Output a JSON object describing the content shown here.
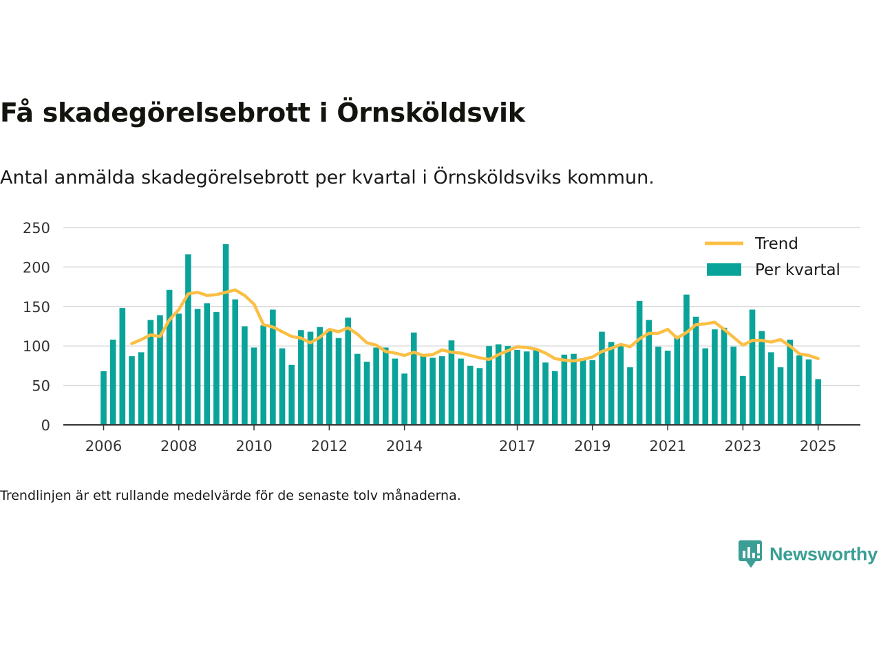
{
  "title": "Få skadegörelsebrott i Örnsköldsvik",
  "subtitle": "Antal anmälda skadegörelsebrott per kvartal i Örnsköldsviks kommun.",
  "footnote": "Trendlinjen är ett rullande medelvärde för de senaste tolv månaderna.",
  "brand": {
    "name": "Newsworthy",
    "color": "#3a9e94",
    "icon": "newsworthy-logo-icon"
  },
  "colors": {
    "bar": "#0aa39a",
    "trend": "#fbbf45",
    "grid": "#d9d9d9",
    "axis": "#333333"
  },
  "chart_data": {
    "type": "bar",
    "title": "",
    "xlabel": "",
    "ylabel": "",
    "ylim": [
      0,
      250
    ],
    "yticks": [
      0,
      50,
      100,
      150,
      200,
      250
    ],
    "xticks": [
      "2006",
      "2008",
      "2010",
      "2012",
      "2014",
      "2017",
      "2019",
      "2021",
      "2023",
      "2025"
    ],
    "grid": true,
    "legend_position": "top-right",
    "series": [
      {
        "name": "Per kvartal",
        "type": "bar",
        "values": [
          68,
          108,
          148,
          87,
          92,
          133,
          139,
          171,
          141,
          216,
          147,
          154,
          143,
          229,
          159,
          125,
          98,
          126,
          146,
          97,
          76,
          120,
          118,
          124,
          121,
          110,
          136,
          90,
          80,
          98,
          98,
          84,
          65,
          117,
          88,
          85,
          87,
          107,
          84,
          75,
          72,
          100,
          102,
          100,
          95,
          93,
          95,
          79,
          68,
          89,
          90,
          83,
          82,
          118,
          105,
          100,
          73,
          157,
          133,
          99,
          94,
          113,
          165,
          137,
          97,
          121,
          123,
          99,
          62,
          146,
          119,
          92,
          73,
          108,
          88,
          83,
          58
        ],
        "quarters": [
          "2006Q1",
          "2006Q2",
          "2006Q3",
          "2006Q4",
          "2007Q1",
          "2007Q2",
          "2007Q3",
          "2007Q4",
          "2008Q1",
          "2008Q2",
          "2008Q3",
          "2008Q4",
          "2009Q1",
          "2009Q2",
          "2009Q3",
          "2009Q4",
          "2010Q1",
          "2010Q2",
          "2010Q3",
          "2010Q4",
          "2011Q1",
          "2011Q2",
          "2011Q3",
          "2011Q4",
          "2012Q1",
          "2012Q2",
          "2012Q3",
          "2012Q4",
          "2013Q1",
          "2013Q2",
          "2013Q3",
          "2013Q4",
          "2014Q1",
          "2014Q2",
          "2014Q3",
          "2014Q4",
          "2015Q1",
          "2015Q2",
          "2015Q3",
          "2015Q4",
          "2016Q1",
          "2016Q2",
          "2016Q3",
          "2016Q4",
          "2017Q1",
          "2017Q2",
          "2017Q3",
          "2017Q4",
          "2018Q1",
          "2018Q2",
          "2018Q3",
          "2018Q4",
          "2019Q1",
          "2019Q2",
          "2019Q3",
          "2019Q4",
          "2020Q1",
          "2020Q2",
          "2020Q3",
          "2020Q4",
          "2021Q1",
          "2021Q2",
          "2021Q3",
          "2021Q4",
          "2022Q1",
          "2022Q2",
          "2022Q3",
          "2022Q4",
          "2023Q1",
          "2023Q2",
          "2023Q3",
          "2023Q4",
          "2024Q1",
          "2024Q2",
          "2024Q3",
          "2024Q4",
          "2025Q1"
        ]
      },
      {
        "name": "Trend",
        "type": "line",
        "start_quarter": "2006Q4",
        "values": [
          103,
          108,
          114,
          112,
          133,
          146,
          166,
          168,
          164,
          165,
          168,
          171,
          164,
          153,
          127,
          124,
          118,
          112,
          110,
          104,
          111,
          121,
          118,
          123,
          115,
          104,
          101,
          93,
          91,
          88,
          92,
          88,
          89,
          95,
          92,
          91,
          88,
          85,
          83,
          89,
          94,
          99,
          98,
          96,
          91,
          84,
          82,
          81,
          83,
          86,
          93,
          97,
          102,
          99,
          109,
          116,
          116,
          121,
          110,
          117,
          127,
          128,
          130,
          121,
          111,
          101,
          107,
          107,
          105,
          108,
          100,
          90,
          88,
          84
        ]
      }
    ]
  }
}
